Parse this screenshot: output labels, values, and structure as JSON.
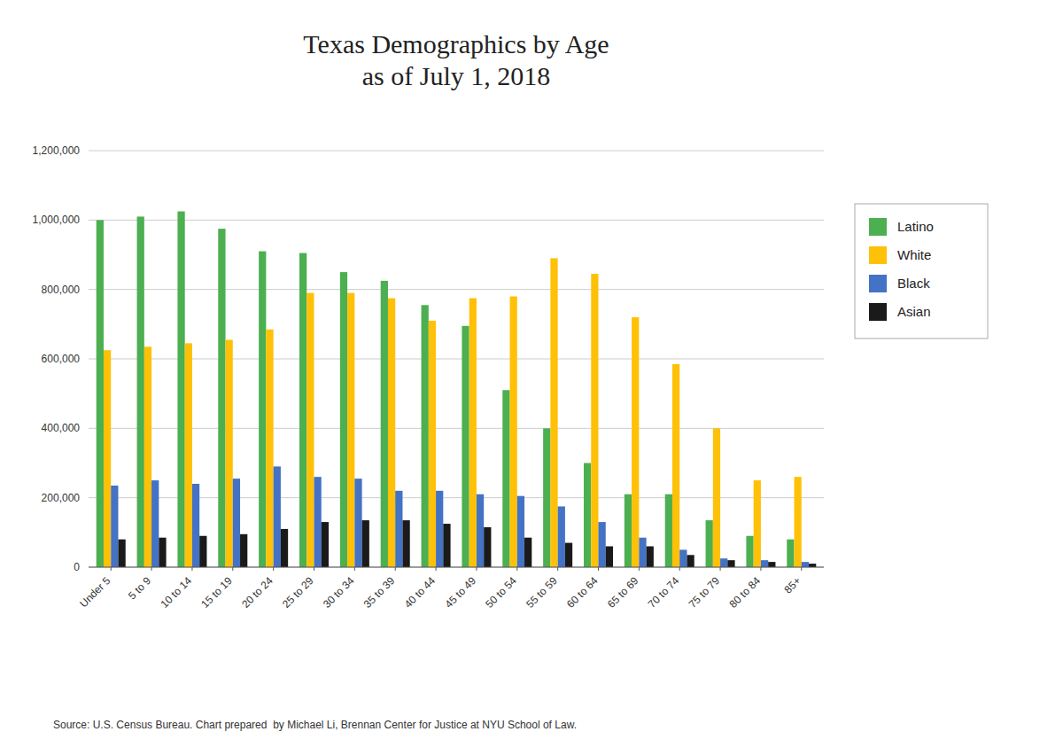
{
  "chart_data": {
    "type": "bar",
    "title": "Texas Demographics by Age\nas of July 1, 2018",
    "categories": [
      "Under 5",
      "5 to 9",
      "10 to 14",
      "15 to 19",
      "20 to 24",
      "25 to 29",
      "30 to 34",
      "35 to 39",
      "40 to 44",
      "45 to 49",
      "50 to 54",
      "55 to 59",
      "60 to 64",
      "65 to 69",
      "70 to 74",
      "75 to 79",
      "80 to 84",
      "85+"
    ],
    "series": [
      {
        "name": "Latino",
        "color": "#4CAF50",
        "values": [
          1000000,
          1010000,
          1025000,
          975000,
          910000,
          905000,
          850000,
          825000,
          755000,
          695000,
          510000,
          400000,
          300000,
          210000,
          210000,
          135000,
          90000,
          80000
        ]
      },
      {
        "name": "White",
        "color": "#FFC107",
        "values": [
          625000,
          635000,
          645000,
          655000,
          685000,
          790000,
          790000,
          775000,
          710000,
          775000,
          780000,
          890000,
          845000,
          720000,
          585000,
          400000,
          250000,
          260000
        ]
      },
      {
        "name": "Black",
        "color": "#4472C4",
        "values": [
          235000,
          250000,
          240000,
          255000,
          290000,
          260000,
          255000,
          220000,
          220000,
          210000,
          205000,
          175000,
          130000,
          85000,
          50000,
          25000,
          20000,
          15000
        ]
      },
      {
        "name": "Asian",
        "color": "#1a1a1a",
        "values": [
          80000,
          85000,
          90000,
          95000,
          110000,
          130000,
          135000,
          135000,
          125000,
          115000,
          85000,
          70000,
          60000,
          60000,
          35000,
          20000,
          15000,
          10000
        ]
      }
    ],
    "ylim": [
      0,
      1200000
    ],
    "yticks": [
      0,
      {
        "value": 200000,
        "label": "200,000"
      },
      {
        "value": 400000,
        "label": "400,000"
      },
      {
        "value": 600000,
        "label": "600,000"
      },
      {
        "value": 800000,
        "label": "800,000"
      },
      {
        "value": 1000000,
        "label": "1,000,000"
      },
      {
        "value": 1200000,
        "label": "1,200,000"
      }
    ],
    "grid": true,
    "legend": "right",
    "source": "Source: U.S. Census Bureau. Chart prepared  by Michael Li, Brennan Center for Justice at NYU School of Law."
  }
}
